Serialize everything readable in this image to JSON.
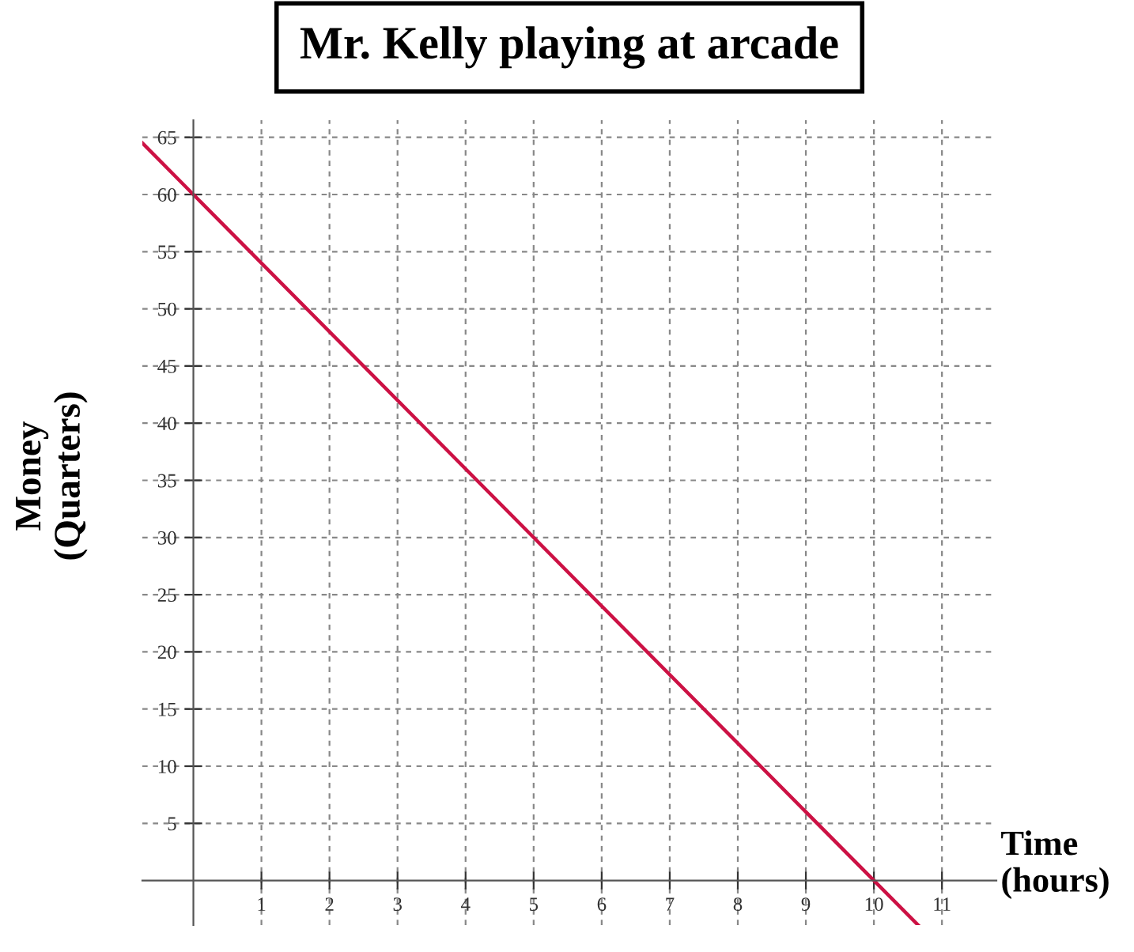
{
  "chart_data": {
    "type": "line",
    "title": "Mr. Kelly playing at arcade",
    "xlabel": "Time\n(hours)",
    "ylabel": "Money\n(Quarters)",
    "series": [
      {
        "color": "#cc1144",
        "x": [
          -0.75,
          0,
          5,
          10,
          10.65
        ],
        "values": [
          64.5,
          60,
          30,
          0,
          -3.9
        ]
      }
    ],
    "xlim": [
      -0.75,
      11.8
    ],
    "ylim": [
      -3.9,
      66.5
    ],
    "xticks": [
      1,
      2,
      3,
      4,
      5,
      6,
      7,
      8,
      9,
      10,
      11
    ],
    "yticks": [
      5,
      10,
      15,
      20,
      25,
      30,
      35,
      40,
      45,
      50,
      55,
      60,
      65
    ],
    "grid": true,
    "marker": "none",
    "line_style": "solid"
  }
}
